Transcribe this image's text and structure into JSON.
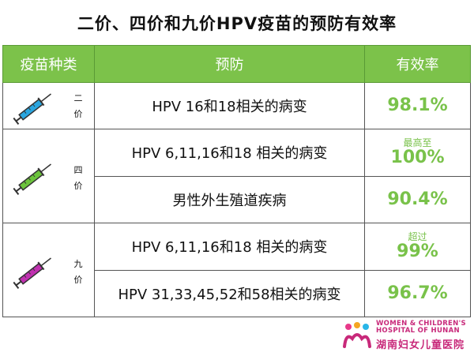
{
  "title": "二价、四价和九价HPV疫苗的预防有效率",
  "headers": {
    "vaccine_type": "疫苗种类",
    "prevention": "预防",
    "efficacy": "有效率"
  },
  "colors": {
    "header_bg": "#7cc24a",
    "efficacy_text": "#79c24a",
    "bivalent_syringe": "#2aa6e0",
    "quadrivalent_syringe": "#6cc43c",
    "nonavalent_syringe": "#c030b0"
  },
  "rows": [
    {
      "vaccine_label": [
        "二",
        "价"
      ],
      "icon": "syringe-icon-blue",
      "entries": [
        {
          "prevention": "HPV 16和18相关的病变",
          "efficacy_prefix": "",
          "efficacy": "98.1%"
        }
      ]
    },
    {
      "vaccine_label": [
        "四",
        "价"
      ],
      "icon": "syringe-icon-green",
      "entries": [
        {
          "prevention": "HPV 6,11,16和18 相关的病变",
          "efficacy_prefix": "最高至",
          "efficacy": "100%"
        },
        {
          "prevention": "男性外生殖道疾病",
          "efficacy_prefix": "",
          "efficacy": "90.4%"
        }
      ]
    },
    {
      "vaccine_label": [
        "九",
        "价"
      ],
      "icon": "syringe-icon-purple",
      "entries": [
        {
          "prevention": "HPV 6,11,16和18 相关的病变",
          "efficacy_prefix": "超过",
          "efficacy": "99%"
        },
        {
          "prevention": "HPV 31,33,45,52和58相关的病变",
          "efficacy_prefix": "",
          "efficacy": "96.7%"
        }
      ]
    }
  ],
  "logo": {
    "english_line1": "WOMEN & CHILDREN'S",
    "english_line2": "HOSPITAL OF HUNAN",
    "chinese": "湖南妇女儿童医院"
  }
}
